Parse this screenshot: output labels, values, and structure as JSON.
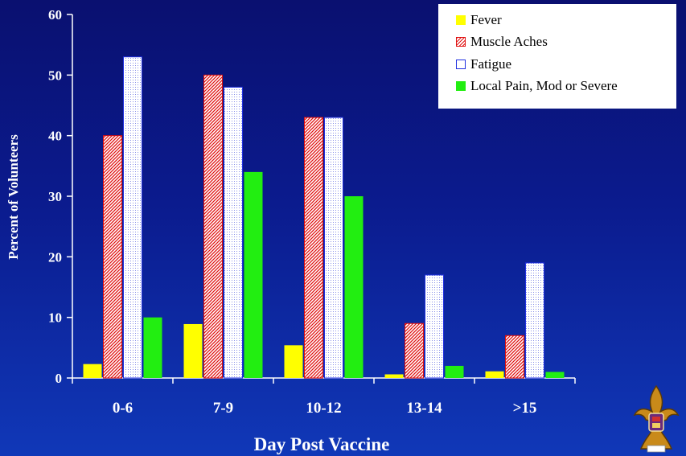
{
  "chart_data": {
    "type": "bar",
    "categories": [
      "0-6",
      "7-9",
      "10-12",
      "13-14",
      ">15"
    ],
    "series": [
      {
        "name": "Fever",
        "values": [
          2.3,
          8.9,
          5.4,
          0.6,
          1.1
        ],
        "color": "#ffff00",
        "pattern": "solid"
      },
      {
        "name": "Muscle Aches",
        "values": [
          40,
          50,
          43,
          9,
          7
        ],
        "color": "#e01010",
        "pattern": "diagonal-hatch"
      },
      {
        "name": "Fatigue",
        "values": [
          53,
          48,
          43,
          17,
          19
        ],
        "color": "#2030e0",
        "pattern": "dotted"
      },
      {
        "name": "Local Pain, Mod or Severe",
        "values": [
          10,
          34,
          30,
          2,
          1
        ],
        "color": "#22ee11",
        "pattern": "solid"
      }
    ],
    "xlabel": "Day Post Vaccine",
    "ylabel": "Percent of Volunteers",
    "ylim": [
      0,
      60
    ],
    "yticks": [
      "0",
      "10",
      "20",
      "30",
      "40",
      "50",
      "60"
    ],
    "grid": false,
    "legend_position": "top-right"
  },
  "background_colors": [
    "#0a1070",
    "#1038b8"
  ],
  "logo_icon": "fleur-de-lis-crest-icon"
}
